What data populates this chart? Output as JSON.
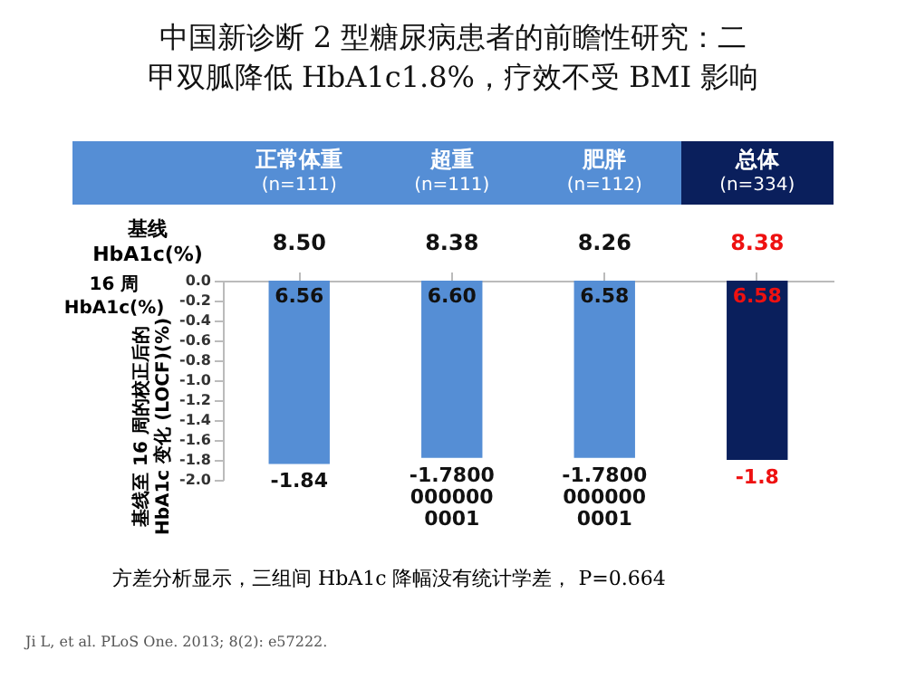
{
  "chart_data": {
    "type": "bar",
    "title": "中国新诊断 2 型糖尿病患者的前瞻性研究：二甲双胍降低 HbA1c1.8%，疗效不受 BMI 影响",
    "categories": [
      "正常体重\n(n=111)",
      "超重\n(n=111)",
      "肥胖\n(n=112)",
      "总体\n(n=334)"
    ],
    "values": [
      -1.84,
      -1.78,
      -1.78,
      -1.8
    ],
    "value_labels": [
      "-1.84",
      "-1.78000000000001",
      "-1.78000000000001",
      "-1.8"
    ],
    "colors": [
      "#558ed5",
      "#558ed5",
      "#558ed5",
      "#0a1f5c"
    ],
    "ylabel": "基线至 16 周的校正后的\nHbA1c 变化 (LOCF)(%)",
    "ylim": [
      -2.0,
      0.0
    ],
    "yticks": [
      {
        "value": 0,
        "label": "0.0"
      },
      {
        "value": -0.2,
        "label": "-0.2"
      },
      {
        "value": -0.4,
        "label": "-0.4"
      },
      {
        "value": -0.6,
        "label": "-0.6"
      },
      {
        "value": -0.8,
        "label": "-0.8"
      },
      {
        "value": -1.0,
        "label": "-1.0"
      },
      {
        "value": -1.2,
        "label": "-1.2"
      },
      {
        "value": -1.4,
        "label": "-1.4"
      },
      {
        "value": -1.6,
        "label": "-1.6"
      },
      {
        "value": -1.8,
        "label": "-1.8"
      },
      {
        "value": -2.0,
        "label": "-2.0"
      }
    ],
    "annotations": [
      "基线\nHbA1c(%)",
      "8.50",
      "8.38",
      "8.26",
      "8.38",
      "16 周\nHbA1c(%)",
      "6.56",
      "6.60",
      "6.58",
      "6.58",
      "方差分析显示，三组间 HbA1c 降幅没有统计学差， P=0.664",
      "Ji L, et al. PLoS One. 2013; 8(2): e57222."
    ]
  }
}
